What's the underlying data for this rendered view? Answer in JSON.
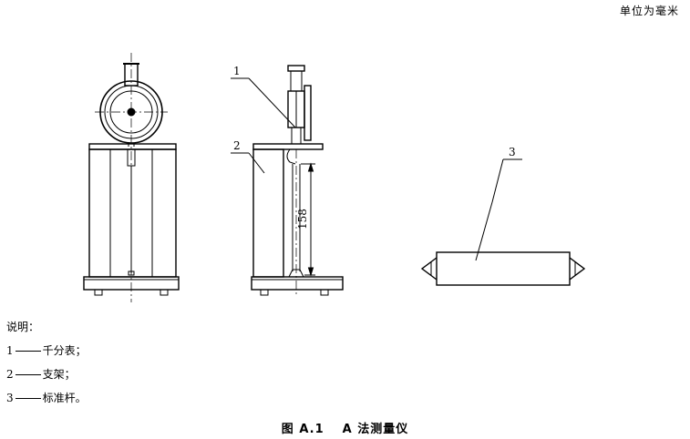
{
  "units_note": "单位为毫米",
  "callouts": [
    {
      "number": "1"
    },
    {
      "number": "2"
    },
    {
      "number": "3"
    }
  ],
  "dimension_label": "158",
  "legend": {
    "heading": "说明：",
    "items": [
      {
        "number": "1",
        "text": "千分表；"
      },
      {
        "number": "2",
        "text": "支架；"
      },
      {
        "number": "3",
        "text": "标准杆。"
      }
    ]
  },
  "caption": {
    "figure_number": "图 A.1",
    "title": "A 法测量仪"
  }
}
